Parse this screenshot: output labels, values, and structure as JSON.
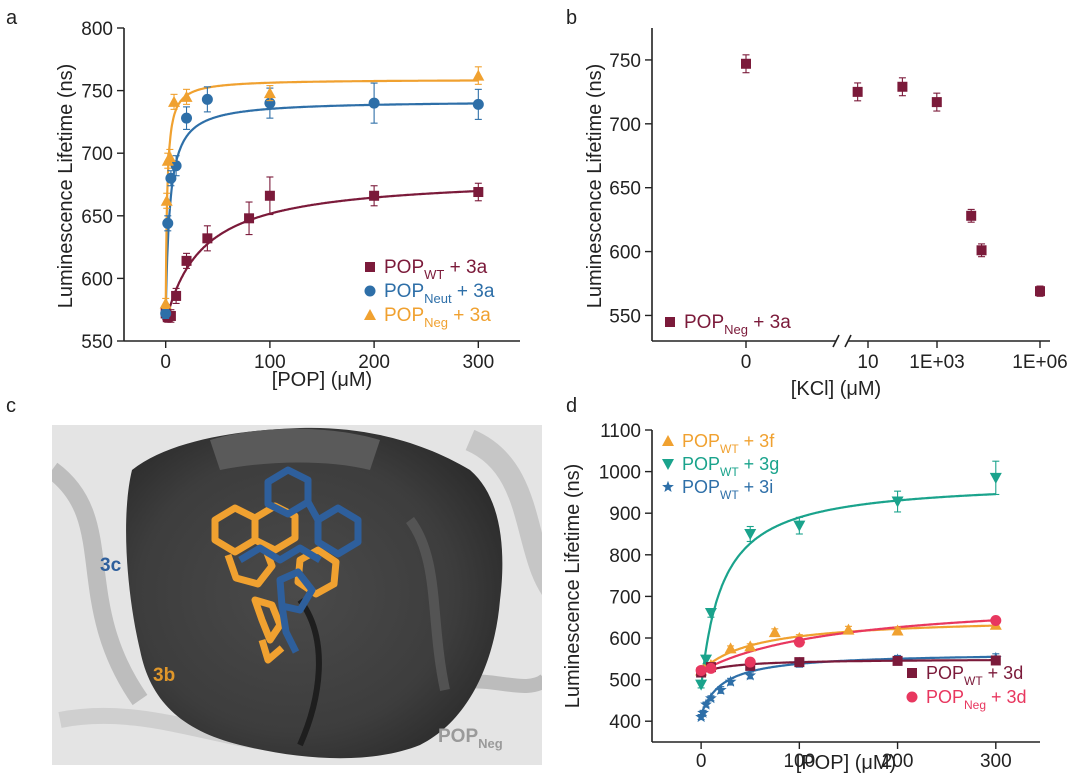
{
  "panels": {
    "a": "a",
    "b": "b",
    "c": "c",
    "d": "d"
  },
  "structure": {
    "label_3c": "3c",
    "label_3b": "3b",
    "label_pop": "POP",
    "label_pop_sub": "Neg"
  },
  "chart_data": [
    {
      "id": "a",
      "type": "scatter",
      "xlabel": "[POP] (μM)",
      "ylabel": "Luminescence Lifetime (ns)",
      "xlim": [
        -40,
        340
      ],
      "ylim": [
        550,
        800
      ],
      "xticks": [
        "0",
        "100",
        "200",
        "300"
      ],
      "yticks": [
        "550",
        "600",
        "650",
        "700",
        "750",
        "800"
      ],
      "legend_position": "bottom-right",
      "series": [
        {
          "name": "POP",
          "sub": "WT",
          "suffix": " + 3a",
          "color": "#7b1a3a",
          "marker": "square",
          "x": [
            0,
            2,
            5,
            10,
            20,
            40,
            80,
            100,
            200,
            300
          ],
          "y": [
            572,
            569,
            570,
            586,
            614,
            632,
            648,
            666,
            666,
            669
          ],
          "err": [
            5,
            4,
            5,
            6,
            6,
            10,
            13,
            15,
            8,
            7
          ]
        },
        {
          "name": "POP",
          "sub": "Neut",
          "suffix": " + 3a",
          "color": "#2e6fa8",
          "marker": "circle",
          "x": [
            0,
            2,
            5,
            10,
            20,
            40,
            100,
            200,
            300
          ],
          "y": [
            572,
            644,
            680,
            690,
            728,
            743,
            740,
            740,
            739
          ],
          "err": [
            4,
            6,
            6,
            8,
            9,
            10,
            12,
            16,
            12
          ]
        },
        {
          "name": "POP",
          "sub": "Neg",
          "suffix": " + 3a",
          "color": "#f0a130",
          "marker": "triangle",
          "x": [
            0,
            1,
            2,
            4,
            8,
            20,
            100,
            300
          ],
          "y": [
            580,
            662,
            694,
            697,
            741,
            745,
            748,
            762
          ],
          "err": [
            4,
            6,
            6,
            6,
            6,
            6,
            6,
            7
          ]
        }
      ]
    },
    {
      "id": "b",
      "type": "scatter",
      "xlabel": "[KCl] (μM)",
      "ylabel": "Luminescence Lifetime (ns)",
      "ylim": [
        530,
        775
      ],
      "xticks": [
        "0",
        "10",
        "1E+03",
        "1E+06"
      ],
      "yticks": [
        "550",
        "600",
        "650",
        "700",
        "750"
      ],
      "legend_position": "bottom-left",
      "series": [
        {
          "name": "POP",
          "sub": "Neg",
          "suffix": " + 3a",
          "color": "#7b1a3a",
          "marker": "square",
          "x": [
            0,
            5,
            100,
            1000,
            10000,
            20000,
            1000000
          ],
          "y": [
            747,
            725,
            729,
            717,
            628,
            601,
            569
          ],
          "err": [
            7,
            7,
            7,
            7,
            5,
            5,
            4
          ]
        }
      ]
    },
    {
      "id": "d",
      "type": "scatter",
      "xlabel": "[POP] (μM)",
      "ylabel": "Luminescence Lifetime (ns)",
      "xlim": [
        -50,
        345
      ],
      "ylim": [
        350,
        1100
      ],
      "xticks": [
        "0",
        "100",
        "200",
        "300"
      ],
      "yticks": [
        "400",
        "500",
        "600",
        "700",
        "800",
        "900",
        "1000",
        "1100"
      ],
      "series": [
        {
          "name": "POP",
          "sub": "WT",
          "suffix": " + 3f",
          "color": "#f0a130",
          "marker": "triangle",
          "legend": "top",
          "x": [
            0,
            5,
            10,
            30,
            50,
            75,
            100,
            150,
            200,
            300
          ],
          "y": [
            522,
            530,
            535,
            575,
            580,
            614,
            600,
            620,
            618,
            632
          ],
          "err": [
            6,
            6,
            6,
            6,
            6,
            8,
            8,
            8,
            8,
            10
          ]
        },
        {
          "name": "POP",
          "sub": "WT",
          "suffix": " + 3g",
          "color": "#1aa38c",
          "marker": "triangle-down",
          "legend": "top",
          "x": [
            0,
            5,
            10,
            50,
            100,
            200,
            300
          ],
          "y": [
            488,
            548,
            660,
            850,
            870,
            928,
            985
          ],
          "err": [
            8,
            10,
            10,
            18,
            20,
            25,
            40
          ]
        },
        {
          "name": "POP",
          "sub": "WT",
          "suffix": " + 3i",
          "color": "#2e6fa8",
          "marker": "star",
          "legend": "top",
          "x": [
            0,
            2,
            5,
            10,
            20,
            30,
            50,
            100,
            200,
            300
          ],
          "y": [
            410,
            420,
            440,
            455,
            475,
            495,
            510,
            540,
            548,
            552
          ],
          "err": [
            6,
            6,
            6,
            6,
            8,
            8,
            8,
            10,
            10,
            10
          ]
        },
        {
          "name": "POP",
          "sub": "WT",
          "suffix": " + 3d",
          "color": "#7b1a3a",
          "marker": "square",
          "legend": "bottom",
          "x": [
            0,
            10,
            50,
            100,
            200,
            300
          ],
          "y": [
            517,
            530,
            533,
            542,
            545,
            546
          ],
          "err": [
            6,
            6,
            6,
            8,
            8,
            8
          ]
        },
        {
          "name": "POP",
          "sub": "Neg",
          "suffix": " + 3d",
          "color": "#e8375f",
          "marker": "circle",
          "legend": "bottom",
          "x": [
            0,
            10,
            50,
            100,
            300
          ],
          "y": [
            522,
            527,
            542,
            590,
            642
          ],
          "err": [
            6,
            6,
            6,
            6,
            8
          ]
        }
      ]
    }
  ]
}
